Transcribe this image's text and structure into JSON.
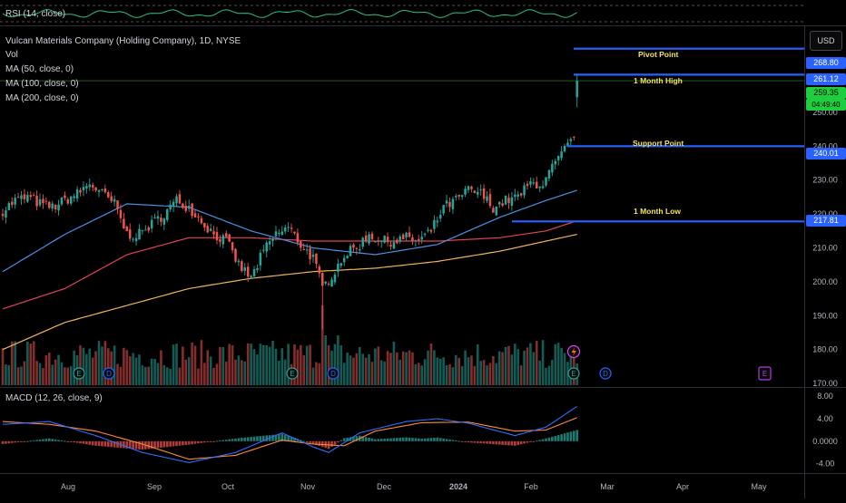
{
  "currency_button": "USD",
  "rsi_pane": {
    "label": "RSI (14, close)"
  },
  "legend": {
    "symbol": "Vulcan Materials Company (Holding Company), 1D, NYSE",
    "vol": "Vol",
    "ma50": "MA (50, close, 0)",
    "ma100": "MA (100, close, 0)",
    "ma200": "MA (200, close, 0)"
  },
  "macd_pane": {
    "label": "MACD (12, 26, close, 9)"
  },
  "colors": {
    "up": "#26a69a",
    "down": "#ef5350",
    "ma50": "#4a90e2",
    "ma100": "#e04552",
    "ma200": "#f0b35a",
    "level_line": "#2962ff",
    "annotation": "#f2e55c",
    "macd": "#2f6fff",
    "signal": "#ff8a3d",
    "current": "#1fce3f"
  },
  "chart_data": {
    "type": "candlestick",
    "price_axis": {
      "ticks": [
        "250.00",
        "240.00",
        "230.00",
        "220.00",
        "210.00",
        "200.00",
        "190.00",
        "180.00",
        "170.00"
      ],
      "ylim": [
        166,
        273
      ]
    },
    "time_axis": {
      "labels": [
        "Aug",
        "Sep",
        "Oct",
        "Nov",
        "Dec",
        "2024",
        "Feb",
        "Mar",
        "Apr",
        "May"
      ]
    },
    "current_price": {
      "value": "259.35",
      "countdown": "04:49:40"
    },
    "levels": [
      {
        "name": "Pivot Point",
        "value": 268.8,
        "label": "268.80"
      },
      {
        "name": "1 Month High",
        "value": 261.12,
        "label": "261.12"
      },
      {
        "name": "Support Point",
        "value": 240.01,
        "label": "240.01"
      },
      {
        "name": "1 Month Low",
        "value": 217.81,
        "label": "217.81"
      }
    ],
    "close_anchors": [
      [
        0,
        221
      ],
      [
        4,
        224
      ],
      [
        8,
        225
      ],
      [
        12,
        223
      ],
      [
        16,
        222
      ],
      [
        20,
        224
      ],
      [
        24,
        226
      ],
      [
        28,
        229
      ],
      [
        32,
        226
      ],
      [
        36,
        223
      ],
      [
        40,
        214
      ],
      [
        44,
        214
      ],
      [
        48,
        217
      ],
      [
        52,
        220
      ],
      [
        56,
        224
      ],
      [
        60,
        222
      ],
      [
        64,
        218
      ],
      [
        68,
        214
      ],
      [
        72,
        212
      ],
      [
        76,
        205
      ],
      [
        80,
        201
      ],
      [
        84,
        209
      ],
      [
        88,
        214
      ],
      [
        92,
        216
      ],
      [
        96,
        211
      ],
      [
        100,
        207
      ],
      [
        103,
        198
      ],
      [
        106,
        202
      ],
      [
        110,
        208
      ],
      [
        114,
        210
      ],
      [
        118,
        214
      ],
      [
        122,
        212
      ],
      [
        126,
        212
      ],
      [
        130,
        213
      ],
      [
        134,
        212
      ],
      [
        138,
        215
      ],
      [
        142,
        222
      ],
      [
        146,
        224
      ],
      [
        150,
        227
      ],
      [
        154,
        226
      ],
      [
        158,
        222
      ],
      [
        162,
        224
      ],
      [
        166,
        225
      ],
      [
        170,
        229
      ],
      [
        174,
        229
      ],
      [
        178,
        235
      ],
      [
        182,
        240
      ],
      [
        184,
        242
      ],
      [
        185,
        259
      ]
    ],
    "ma50_anchors": [
      [
        0,
        203
      ],
      [
        20,
        214
      ],
      [
        40,
        223
      ],
      [
        60,
        222
      ],
      [
        80,
        215
      ],
      [
        100,
        210
      ],
      [
        120,
        208
      ],
      [
        140,
        211
      ],
      [
        160,
        219
      ],
      [
        175,
        224
      ],
      [
        185,
        227
      ]
    ],
    "ma100_anchors": [
      [
        0,
        192
      ],
      [
        20,
        198
      ],
      [
        40,
        208
      ],
      [
        60,
        213
      ],
      [
        80,
        213
      ],
      [
        100,
        212
      ],
      [
        120,
        212
      ],
      [
        140,
        212
      ],
      [
        160,
        213
      ],
      [
        175,
        215
      ],
      [
        185,
        218
      ]
    ],
    "ma200_anchors": [
      [
        0,
        180
      ],
      [
        20,
        188
      ],
      [
        40,
        193
      ],
      [
        60,
        198
      ],
      [
        80,
        201
      ],
      [
        100,
        203
      ],
      [
        120,
        204
      ],
      [
        140,
        206
      ],
      [
        160,
        209
      ],
      [
        175,
        212
      ],
      [
        185,
        214
      ]
    ],
    "macd_axis": {
      "ticks": [
        "8.00",
        "4.00",
        "0.0000",
        "-4.00"
      ],
      "ylim": [
        -5.5,
        9
      ]
    },
    "macd_anchors": [
      [
        0,
        3
      ],
      [
        15,
        3.5
      ],
      [
        30,
        1
      ],
      [
        45,
        -2
      ],
      [
        60,
        -3.8
      ],
      [
        75,
        -2
      ],
      [
        90,
        1.5
      ],
      [
        100,
        -1
      ],
      [
        105,
        -2
      ],
      [
        115,
        1.5
      ],
      [
        130,
        3.5
      ],
      [
        140,
        4
      ],
      [
        150,
        3.2
      ],
      [
        165,
        1
      ],
      [
        175,
        2.5
      ],
      [
        185,
        6.2
      ]
    ],
    "signal_anchors": [
      [
        0,
        3.5
      ],
      [
        15,
        3
      ],
      [
        30,
        1.8
      ],
      [
        45,
        -0.5
      ],
      [
        60,
        -3.2
      ],
      [
        75,
        -2.5
      ],
      [
        90,
        0.2
      ],
      [
        100,
        -0.5
      ],
      [
        110,
        -0.8
      ],
      [
        120,
        1.8
      ],
      [
        135,
        3.3
      ],
      [
        150,
        3.4
      ],
      [
        165,
        1.8
      ],
      [
        175,
        2
      ],
      [
        185,
        4.2
      ]
    ]
  }
}
